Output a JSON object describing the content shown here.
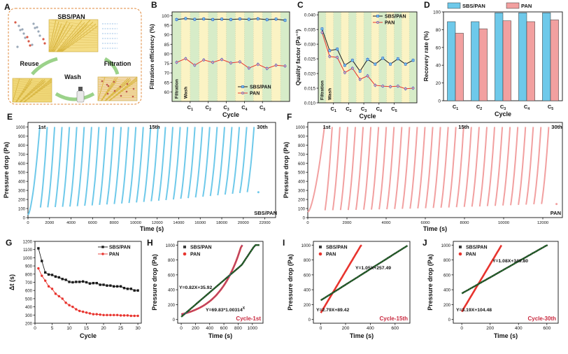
{
  "colors": {
    "sbs": "#6ec9ea",
    "pan": "#f2a0a0",
    "sbs_line": "#1a1a1a",
    "pan_line": "#e8342e",
    "fit_blue": "#4a6fe0",
    "fit_green": "#2a9a3a",
    "cycle_red": "#c8283e",
    "panel_bg": "#f7e3a4",
    "band_green": "#d7ecc8",
    "band_yellow": "#fbf3c4",
    "schematic_border": "#e08a3c"
  },
  "panel_letters": {
    "A": "A",
    "B": "B",
    "C": "C",
    "D": "D",
    "E": "E",
    "F": "F",
    "G": "G",
    "H": "H",
    "I": "I",
    "J": "J"
  },
  "schematic": {
    "material": "SBS/PAN",
    "step_reuse": "Reuse",
    "step_wash": "Wash",
    "step_filtration": "Filtration"
  },
  "chart_data": [
    {
      "panel": "B",
      "type": "line",
      "xlabel": "Cycle",
      "ylabel": "Filtration efficiency (%)",
      "ylim": [
        55,
        102
      ],
      "yticks": [
        60,
        65,
        70,
        75,
        80,
        85,
        90,
        95,
        100
      ],
      "band_labels": [
        "Filtration",
        "Wash"
      ],
      "cycle_labels": [
        {
          "b": "C",
          "s": "1"
        },
        {
          "b": "C",
          "s": "2"
        },
        {
          "b": "C",
          "s": "3"
        },
        {
          "b": "C",
          "s": "4"
        },
        {
          "b": "C",
          "s": "5"
        }
      ],
      "series": [
        {
          "name": "SBS/PAN",
          "values": [
            98.0,
            98.5,
            98.1,
            98.3,
            98.0,
            98.2,
            98.0,
            98.3,
            98.1,
            98.4,
            97.9,
            98.2,
            97.6
          ]
        },
        {
          "name": "PAN",
          "values": [
            75.5,
            77.5,
            74.0,
            76.8,
            75.5,
            77.0,
            75.2,
            75.8,
            72.5,
            74.5,
            72.3,
            74.0,
            73.6
          ]
        }
      ]
    },
    {
      "panel": "C",
      "type": "line",
      "xlabel": "Cycle",
      "ylabel": "Quality factor (Pa⁻¹)",
      "ylim": [
        0.01,
        0.041
      ],
      "yticks": [
        0.01,
        0.015,
        0.02,
        0.025,
        0.03,
        0.035,
        0.04
      ],
      "band_labels": [
        "Filtration",
        "Wash"
      ],
      "cycle_labels": [
        {
          "b": "C",
          "s": "1"
        },
        {
          "b": "C",
          "s": "2"
        },
        {
          "b": "C",
          "s": "3"
        },
        {
          "b": "C",
          "s": "4"
        },
        {
          "b": "C",
          "s": "5"
        }
      ],
      "series": [
        {
          "name": "SBS/PAN",
          "values": [
            0.0352,
            0.0278,
            0.0283,
            0.0228,
            0.0245,
            0.0208,
            0.0248,
            0.0232,
            0.0252,
            0.0232,
            0.025,
            0.0232,
            0.0245
          ]
        },
        {
          "name": "PAN",
          "values": [
            0.034,
            0.0258,
            0.0255,
            0.0203,
            0.0218,
            0.018,
            0.0192,
            0.016,
            0.0157,
            0.0155,
            0.0157,
            0.0148,
            0.015
          ]
        }
      ]
    },
    {
      "panel": "D",
      "type": "bar",
      "xlabel": "Cycle",
      "ylabel": "Recovery rate (%)",
      "ylim": [
        0,
        100
      ],
      "yticks": [
        0,
        20,
        40,
        60,
        80,
        100
      ],
      "categories": [
        {
          "b": "C",
          "s": "1"
        },
        {
          "b": "C",
          "s": "2"
        },
        {
          "b": "C",
          "s": "3"
        },
        {
          "b": "C",
          "s": "4"
        },
        {
          "b": "C",
          "s": "5"
        }
      ],
      "series": [
        {
          "name": "SBS/PAN",
          "values": [
            89,
            89,
            99,
            99,
            99
          ]
        },
        {
          "name": "PAN",
          "values": [
            76,
            81,
            90,
            89,
            91
          ]
        }
      ]
    },
    {
      "panel": "E",
      "type": "line",
      "xlabel": "Time (s)",
      "ylabel": "Pressure drop (Pa)",
      "xlim": [
        0,
        23000
      ],
      "ylim": [
        0,
        1050
      ],
      "xticks": [
        0,
        2000,
        4000,
        6000,
        8000,
        10000,
        12000,
        14000,
        16000,
        18000,
        20000,
        22000
      ],
      "yticks": [
        0,
        100,
        200,
        300,
        400,
        500,
        600,
        700,
        800,
        900,
        1000
      ],
      "series_name": "SBS/PAN",
      "cycles": 30,
      "t_first_end": 1100,
      "t_last_end": 21000,
      "start_first": 30,
      "start_min": 110,
      "start_max": 280,
      "annotations": [
        "1st",
        "15th",
        "30th"
      ]
    },
    {
      "panel": "F",
      "type": "line",
      "xlabel": "Time (s)",
      "ylabel": "Pressure drop (Pa)",
      "xlim": [
        0,
        13000
      ],
      "ylim": [
        0,
        1050
      ],
      "xticks": [
        0,
        2000,
        4000,
        6000,
        8000,
        10000,
        12000
      ],
      "yticks": [
        0,
        100,
        200,
        300,
        400,
        500,
        600,
        700,
        800,
        900,
        1000
      ],
      "series_name": "PAN",
      "cycles": 30,
      "t_first_end": 850,
      "t_last_end": 12300,
      "start_first": 60,
      "start_min": 80,
      "start_max": 150,
      "annotations": [
        "1st",
        "15th",
        "30th"
      ]
    },
    {
      "panel": "G",
      "type": "line",
      "xlabel": "Cycle",
      "ylabel": "Δt (s)",
      "xlim": [
        0,
        31
      ],
      "ylim": [
        200,
        1200
      ],
      "xticks": [
        0,
        5,
        10,
        15,
        20,
        25,
        30
      ],
      "yticks": [
        200,
        300,
        400,
        500,
        600,
        700,
        800,
        900,
        1000,
        1100,
        1200
      ],
      "series": [
        {
          "name": "SBS/PAN",
          "x": [
            1,
            2,
            3,
            4,
            5,
            6,
            7,
            8,
            9,
            10,
            11,
            12,
            13,
            14,
            15,
            16,
            17,
            18,
            19,
            20,
            21,
            22,
            23,
            24,
            25,
            26,
            27,
            28,
            29,
            30
          ],
          "values": [
            1115,
            960,
            820,
            795,
            790,
            770,
            760,
            740,
            730,
            705,
            700,
            705,
            705,
            710,
            700,
            685,
            690,
            690,
            670,
            670,
            660,
            660,
            650,
            650,
            650,
            630,
            620,
            620,
            600,
            600
          ]
        },
        {
          "name": "PAN",
          "x": [
            1,
            2,
            3,
            4,
            5,
            6,
            7,
            8,
            9,
            10,
            11,
            12,
            13,
            14,
            15,
            16,
            17,
            18,
            19,
            20,
            21,
            22,
            23,
            24,
            25,
            26,
            27,
            28,
            29,
            30
          ],
          "values": [
            870,
            780,
            720,
            650,
            620,
            560,
            530,
            500,
            450,
            420,
            400,
            370,
            350,
            340,
            330,
            320,
            310,
            310,
            305,
            300,
            300,
            300,
            300,
            300,
            295,
            295,
            295,
            290,
            290,
            290
          ]
        }
      ]
    },
    {
      "panel": "H",
      "type": "scatter",
      "xlabel": "Time (s)",
      "ylabel": "Pressure drop (Pa)",
      "xlim": [
        -50,
        1150
      ],
      "ylim": [
        -50,
        1050
      ],
      "xticks": [
        0,
        200,
        400,
        600,
        800,
        1000
      ],
      "yticks": [
        0,
        200,
        400,
        600,
        800,
        1000
      ],
      "series": [
        {
          "name": "SBS/PAN"
        },
        {
          "name": "PAN"
        }
      ],
      "fits": [
        "Y=0.82X+35.92",
        "Y=69.83*1.00314"
      ],
      "fit_sup": "X",
      "cycle_label": "Cycle-1st"
    },
    {
      "panel": "I",
      "type": "scatter",
      "xlabel": "Time (s)",
      "ylabel": "Pressure drop (Pa)",
      "xlim": [
        -60,
        720
      ],
      "ylim": [
        -50,
        1050
      ],
      "xticks": [
        0,
        200,
        400,
        600
      ],
      "yticks": [
        0,
        200,
        400,
        600,
        800,
        1000
      ],
      "series": [
        {
          "name": "SBS/PAN"
        },
        {
          "name": "PAN"
        }
      ],
      "fits": [
        "Y=1.05X+257.49",
        "Y=2.79X+89.42"
      ],
      "cycle_label": "Cycle-15th"
    },
    {
      "panel": "J",
      "type": "scatter",
      "xlabel": "Time (s)",
      "ylabel": "Pressure drop (Pa)",
      "xlim": [
        -60,
        680
      ],
      "ylim": [
        -50,
        1050
      ],
      "xticks": [
        0,
        200,
        400,
        600
      ],
      "yticks": [
        0,
        200,
        400,
        600,
        800,
        1000
      ],
      "series": [
        {
          "name": "SBS/PAN"
        },
        {
          "name": "PAN"
        }
      ],
      "fits": [
        "Y=1.08X+349.80",
        "Y=3.19X+104.48"
      ],
      "cycle_label": "Cycle-30th"
    }
  ]
}
